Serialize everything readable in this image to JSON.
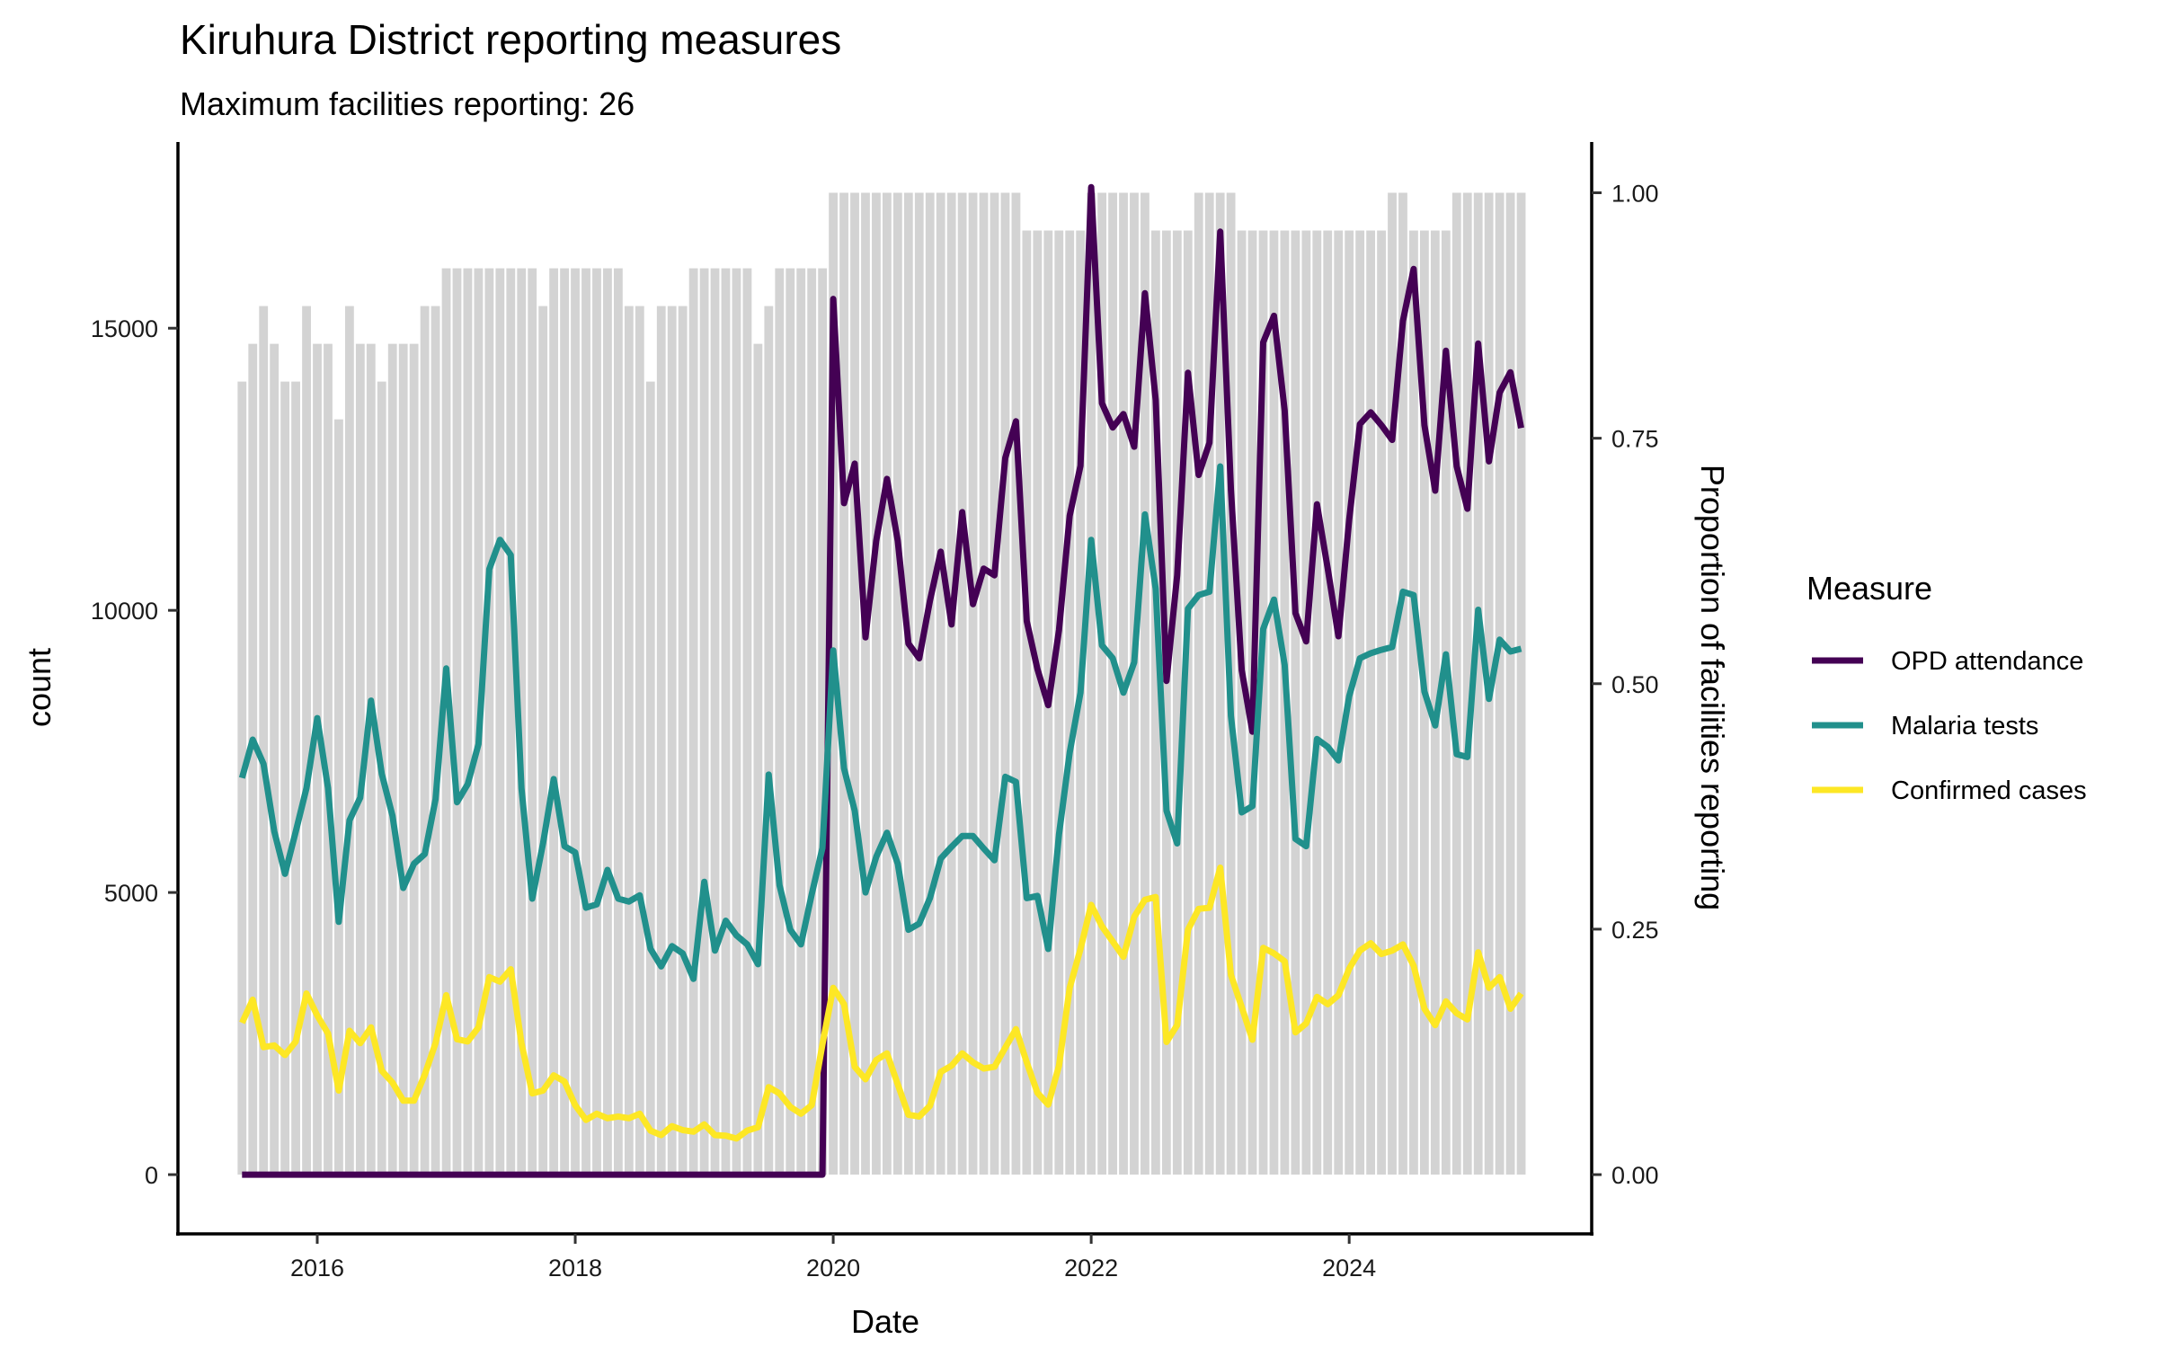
{
  "chart_data": {
    "type": "line",
    "title": "Kiruhura District reporting measures",
    "subtitle": "Maximum facilities reporting: 26",
    "xlabel": "Date",
    "ylabel": "count",
    "y2label": "Proportion of facilities reporting",
    "x_start": "2015-06",
    "x_end": "2025-05",
    "x_frequency": "monthly",
    "xlim": [
      2014.92,
      2025.88
    ],
    "ylim": [
      -1050,
      18300
    ],
    "y2lim": [
      -0.06,
      1.05
    ],
    "x_ticks": [
      2016,
      2018,
      2020,
      2022,
      2024
    ],
    "x_tick_labels": [
      "2016",
      "2018",
      "2020",
      "2022",
      "2024"
    ],
    "y_ticks": [
      0,
      5000,
      10000,
      15000
    ],
    "y_tick_labels": [
      "0",
      "5000",
      "10000",
      "15000"
    ],
    "y2_ticks": [
      0,
      0.25,
      0.5,
      0.75,
      1.0
    ],
    "y2_tick_labels": [
      "0.00",
      "0.25",
      "0.50",
      "0.75",
      "1.00"
    ],
    "y2_to_y_factor": 17400,
    "grid": false,
    "max_facilities": 26,
    "legend": {
      "title": "Measure",
      "position": "right"
    },
    "facilities_reporting": {
      "name": "Facilities reporting (bars, proportion of 26)",
      "color": "#d3d3d3",
      "values": [
        21,
        22,
        23,
        22,
        21,
        21,
        23,
        22,
        22,
        20,
        23,
        22,
        22,
        21,
        22,
        22,
        22,
        23,
        23,
        24,
        24,
        24,
        24,
        24,
        24,
        24,
        24,
        24,
        23,
        24,
        24,
        24,
        24,
        24,
        24,
        24,
        23,
        23,
        21,
        23,
        23,
        23,
        24,
        24,
        24,
        24,
        24,
        24,
        22,
        23,
        24,
        24,
        24,
        24,
        24,
        26,
        26,
        26,
        26,
        26,
        26,
        26,
        26,
        26,
        26,
        26,
        26,
        26,
        26,
        26,
        26,
        26,
        26,
        25,
        25,
        25,
        25,
        25,
        25,
        26,
        26,
        26,
        26,
        26,
        26,
        25,
        25,
        25,
        25,
        26,
        26,
        26,
        26,
        25,
        25,
        25,
        25,
        25,
        25,
        25,
        25,
        25,
        25,
        25,
        25,
        25,
        25,
        26,
        26,
        25,
        25,
        25,
        25,
        26,
        26,
        26,
        26,
        26,
        26,
        26
      ]
    },
    "series": [
      {
        "name": "OPD attendance",
        "color": "#440154",
        "values": [
          0,
          0,
          0,
          0,
          0,
          0,
          0,
          0,
          0,
          0,
          0,
          0,
          0,
          0,
          0,
          0,
          0,
          0,
          0,
          0,
          0,
          0,
          0,
          0,
          0,
          0,
          0,
          0,
          0,
          0,
          0,
          0,
          0,
          0,
          0,
          0,
          0,
          0,
          0,
          0,
          0,
          0,
          0,
          0,
          0,
          0,
          0,
          0,
          0,
          0,
          0,
          0,
          0,
          0,
          0,
          15520,
          11900,
          12600,
          9520,
          11230,
          12330,
          11230,
          9410,
          9150,
          10170,
          11040,
          9750,
          11740,
          10110,
          10740,
          10620,
          12700,
          13350,
          9810,
          8960,
          8320,
          9650,
          11680,
          12560,
          17500,
          13670,
          13240,
          13480,
          12900,
          15620,
          13730,
          8750,
          10620,
          14210,
          12400,
          12970,
          16710,
          12140,
          8940,
          7850,
          14750,
          15220,
          13540,
          9950,
          9450,
          11880,
          10740,
          9540,
          11610,
          13300,
          13510,
          13280,
          13020,
          15130,
          16050,
          13280,
          12120,
          14600,
          12550,
          11800,
          14730,
          12640,
          13860,
          14220,
          13230
        ]
      },
      {
        "name": "Malaria tests",
        "color": "#21908C",
        "values": [
          7030,
          7710,
          7280,
          6080,
          5330,
          6080,
          6850,
          8090,
          6850,
          4480,
          6280,
          6680,
          8400,
          7100,
          6360,
          5080,
          5510,
          5680,
          6650,
          8970,
          6600,
          6920,
          7630,
          10730,
          11250,
          10980,
          6850,
          4890,
          5870,
          7010,
          5820,
          5710,
          4730,
          4790,
          5400,
          4890,
          4840,
          4950,
          4000,
          3690,
          4050,
          3920,
          3470,
          5190,
          3970,
          4500,
          4240,
          4080,
          3730,
          7090,
          5130,
          4340,
          4080,
          4970,
          5790,
          9290,
          7200,
          6450,
          5000,
          5630,
          6060,
          5510,
          4340,
          4450,
          4900,
          5600,
          5810,
          6000,
          6000,
          5780,
          5570,
          7050,
          6960,
          4900,
          4940,
          4000,
          6030,
          7480,
          8540,
          11250,
          9380,
          9150,
          8540,
          9080,
          11700,
          10380,
          6450,
          5870,
          10030,
          10270,
          10330,
          12550,
          8130,
          6420,
          6530,
          9670,
          10190,
          9030,
          5950,
          5820,
          7720,
          7580,
          7340,
          8480,
          9150,
          9240,
          9300,
          9350,
          10330,
          10270,
          8560,
          7960,
          9220,
          7450,
          7400,
          10010,
          8430,
          9480,
          9270,
          9320
        ]
      },
      {
        "name": "Confirmed cases",
        "color": "#FDE725",
        "values": [
          2690,
          3100,
          2260,
          2290,
          2120,
          2360,
          3210,
          2820,
          2500,
          1490,
          2550,
          2330,
          2610,
          1840,
          1630,
          1310,
          1310,
          1770,
          2330,
          3180,
          2400,
          2360,
          2610,
          3500,
          3420,
          3640,
          2330,
          1440,
          1490,
          1760,
          1650,
          1230,
          970,
          1080,
          1000,
          1030,
          1000,
          1080,
          780,
          700,
          860,
          790,
          760,
          890,
          700,
          690,
          640,
          780,
          840,
          1550,
          1440,
          1200,
          1080,
          1230,
          2310,
          3310,
          3020,
          1910,
          1690,
          2030,
          2150,
          1600,
          1060,
          1030,
          1220,
          1820,
          1930,
          2150,
          1990,
          1880,
          1910,
          2250,
          2580,
          1990,
          1450,
          1240,
          1930,
          3310,
          4000,
          4780,
          4400,
          4130,
          3860,
          4570,
          4870,
          4920,
          2350,
          2650,
          4340,
          4710,
          4730,
          5440,
          3540,
          2970,
          2390,
          4020,
          3920,
          3780,
          2520,
          2680,
          3150,
          3020,
          3180,
          3650,
          3970,
          4100,
          3910,
          3970,
          4080,
          3700,
          2940,
          2650,
          3070,
          2860,
          2750,
          3940,
          3310,
          3500,
          2940,
          3210
        ]
      }
    ]
  }
}
